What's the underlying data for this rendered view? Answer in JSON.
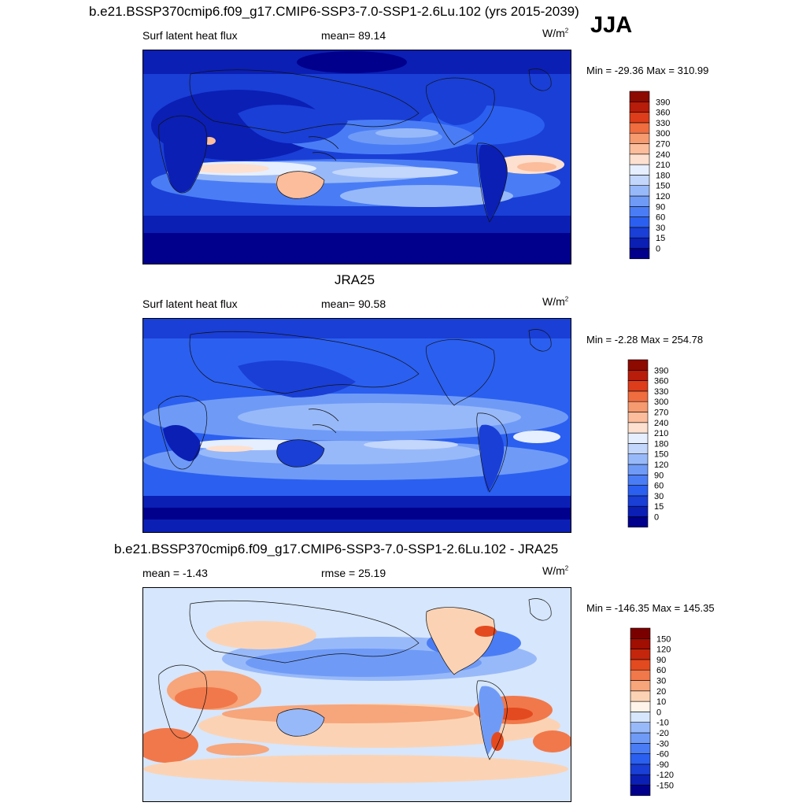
{
  "figure": {
    "season": "JJA",
    "title": "b.e21.BSSP370cmip6.f09_g17.CMIP6-SSP3-7.0-SSP1-2.6Lu.102 (yrs 2015-2039)"
  },
  "panels": [
    {
      "id": "model",
      "title": "",
      "left_label": "Surf latent heat flux",
      "center_label": "mean=  89.14",
      "units_base": "W/m",
      "units_sup": "2",
      "minmax": "Min = -29.36 Max = 310.99",
      "field": "Surf latent heat flux",
      "mean": 89.14,
      "min": -29.36,
      "max": 310.99
    },
    {
      "id": "obs",
      "title": "JRA25",
      "left_label": "Surf latent heat flux",
      "center_label": "mean=  90.58",
      "units_base": "W/m",
      "units_sup": "2",
      "minmax": "Min =  -2.28 Max = 254.78",
      "field": "Surf latent heat flux",
      "mean": 90.58,
      "min": -2.28,
      "max": 254.78
    },
    {
      "id": "diff",
      "title": "b.e21.BSSP370cmip6.f09_g17.CMIP6-SSP3-7.0-SSP1-2.6Lu.102 - JRA25",
      "left_label": "mean =  -1.43",
      "center_label": "rmse =  25.19",
      "units_base": "W/m",
      "units_sup": "2",
      "minmax": "Min = -146.35 Max = 145.35",
      "mean": -1.43,
      "rmse": 25.19,
      "min": -146.35,
      "max": 145.35
    }
  ],
  "colorbars": {
    "flux": {
      "labels": [
        "0",
        "15",
        "30",
        "60",
        "90",
        "120",
        "150",
        "180",
        "210",
        "240",
        "270",
        "300",
        "330",
        "360",
        "390"
      ],
      "colors": [
        "#00008c",
        "#0b1fb4",
        "#1a3fd6",
        "#2b5ff0",
        "#4a7df5",
        "#6f9bf7",
        "#98b9f9",
        "#c3d6fb",
        "#e6efff",
        "#fde0cf",
        "#fbbd9c",
        "#f69a6f",
        "#ef6d3f",
        "#dd3d1a",
        "#b81c0a",
        "#8c0a00"
      ]
    },
    "diff": {
      "labels": [
        "-150",
        "-120",
        "-90",
        "-60",
        "-30",
        "-20",
        "-10",
        "0",
        "10",
        "20",
        "30",
        "60",
        "90",
        "120",
        "150"
      ],
      "colors": [
        "#00008c",
        "#0b1fb4",
        "#1a3fd6",
        "#2b5ff0",
        "#4a7df5",
        "#6f9bf7",
        "#98b9f9",
        "#d6e6fc",
        "#fff4ea",
        "#fbd3b4",
        "#f7a57a",
        "#f1784a",
        "#e44a1f",
        "#c3260c",
        "#a10e02",
        "#7a0000"
      ]
    }
  }
}
